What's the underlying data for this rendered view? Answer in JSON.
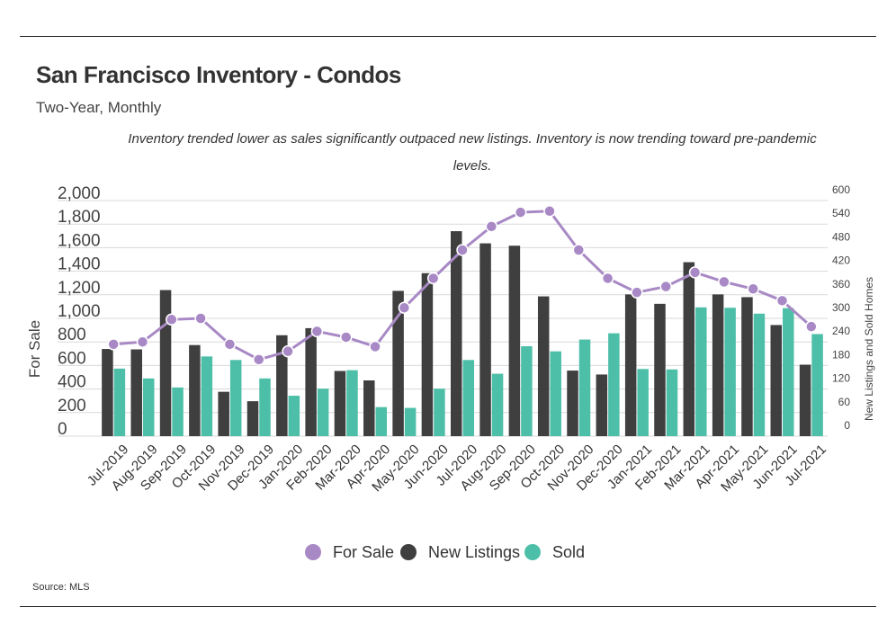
{
  "title": "San Francisco Inventory - Condos",
  "subtitle": "Two-Year, Monthly",
  "caption": "Inventory trended lower as sales significantly outpaced new listings. Inventory is now trending toward pre-pandemic levels.",
  "source": "Source:  MLS",
  "colors": {
    "for_sale": "#a889c5",
    "new_listings": "#3f3f3f",
    "sold": "#4dbfa8",
    "grid": "#d9d9d9"
  },
  "chart_data": {
    "type": "bar",
    "categories": [
      "Jul-2019",
      "Aug-2019",
      "Sep-2019",
      "Oct-2019",
      "Nov-2019",
      "Dec-2019",
      "Jan-2020",
      "Feb-2020",
      "Mar-2020",
      "Apr-2020",
      "May-2020",
      "Jun-2020",
      "Jul-2020",
      "Aug-2020",
      "Sep-2020",
      "Oct-2020",
      "Nov-2020",
      "Dec-2020",
      "Jan-2021",
      "Feb-2021",
      "Mar-2021",
      "Apr-2021",
      "May-2021",
      "Jun-2021",
      "Jul-2021"
    ],
    "series": [
      {
        "name": "For Sale",
        "type": "line",
        "axis": "left",
        "values": [
          780,
          800,
          990,
          1000,
          780,
          650,
          720,
          890,
          840,
          760,
          1090,
          1340,
          1580,
          1780,
          1900,
          1910,
          1580,
          1340,
          1220,
          1270,
          1390,
          1310,
          1250,
          1150,
          930
        ]
      },
      {
        "name": "New Listings",
        "type": "bar",
        "axis": "right",
        "values": [
          222,
          221,
          372,
          232,
          113,
          89,
          257,
          275,
          166,
          142,
          370,
          415,
          522,
          491,
          485,
          356,
          167,
          157,
          361,
          337,
          443,
          361,
          354,
          283,
          182
        ]
      },
      {
        "name": "Sold",
        "type": "bar",
        "axis": "right",
        "values": [
          172,
          147,
          124,
          203,
          194,
          147,
          103,
          121,
          168,
          74,
          72,
          121,
          194,
          159,
          229,
          216,
          246,
          262,
          171,
          170,
          328,
          327,
          312,
          326,
          260
        ]
      }
    ],
    "left_axis": {
      "label": "For Sale",
      "ylim": [
        0,
        2000
      ],
      "ticks": [
        "0",
        "200",
        "400",
        "600",
        "800",
        "1,000",
        "1,200",
        "1,400",
        "1,600",
        "1,800",
        "2,000"
      ]
    },
    "right_axis": {
      "label": "New Listings and Sold Homes",
      "ylim": [
        0,
        600
      ],
      "ticks": [
        "0",
        "60",
        "120",
        "180",
        "240",
        "300",
        "360",
        "420",
        "480",
        "540",
        "600"
      ]
    },
    "grid": true,
    "legend": {
      "position": "bottom-center",
      "entries": [
        "For Sale",
        "New Listings",
        "Sold"
      ]
    }
  }
}
